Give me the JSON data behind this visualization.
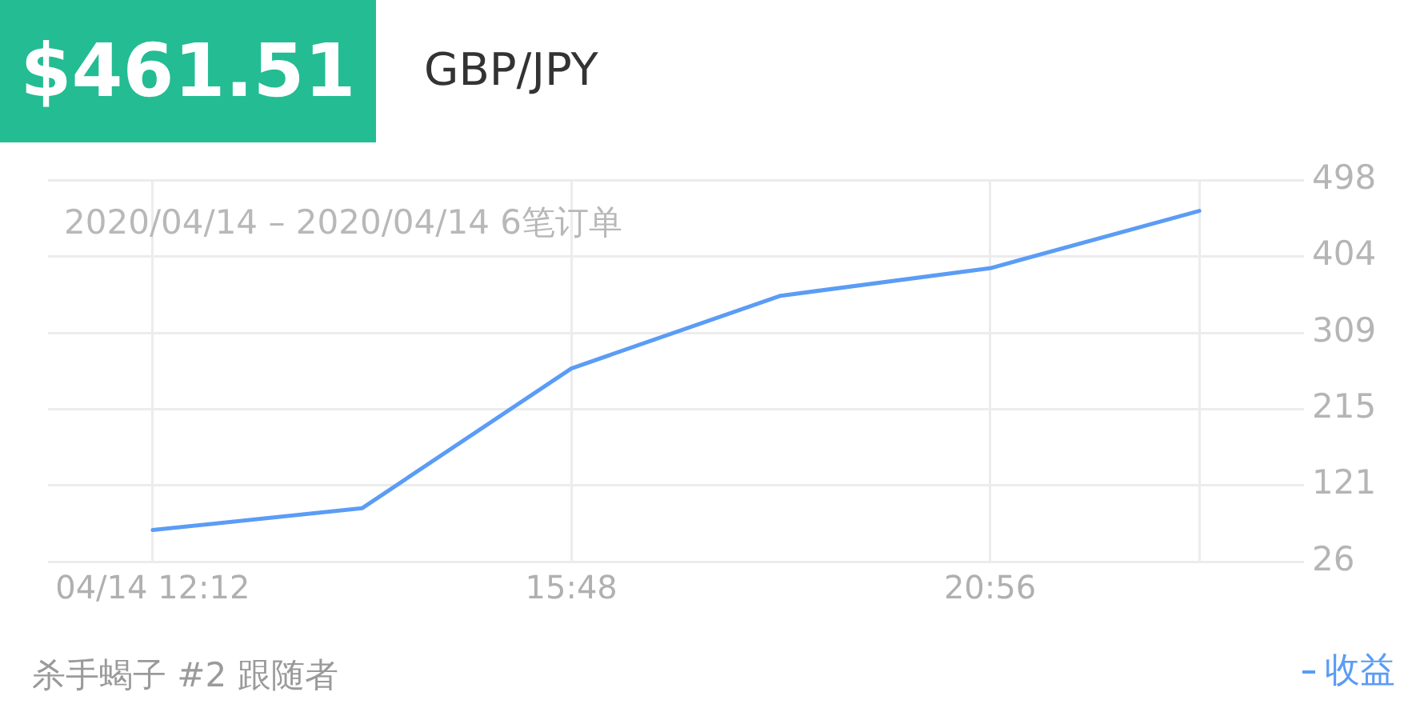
{
  "chart_data": {
    "type": "line",
    "title": "$461.51",
    "subtitle": "GBP/JPY",
    "annotations": [
      "2020/04/14 – 2020/04/14 6笔订单",
      "杀手蝎子 #2 跟随者"
    ],
    "categories": [
      "04/14 12:12",
      null,
      "15:48",
      null,
      "20:56",
      null
    ],
    "series": [
      {
        "name": "收益",
        "color": "#5b9cf5",
        "values": [
          65,
          92,
          265,
          355,
          389,
          460
        ]
      }
    ],
    "ylim": [
      26,
      498
    ],
    "yticks": [
      26,
      121,
      215,
      309,
      404,
      498
    ],
    "grid": true,
    "legend": "bottom right",
    "marker": "none",
    "line_style": "solid"
  }
}
